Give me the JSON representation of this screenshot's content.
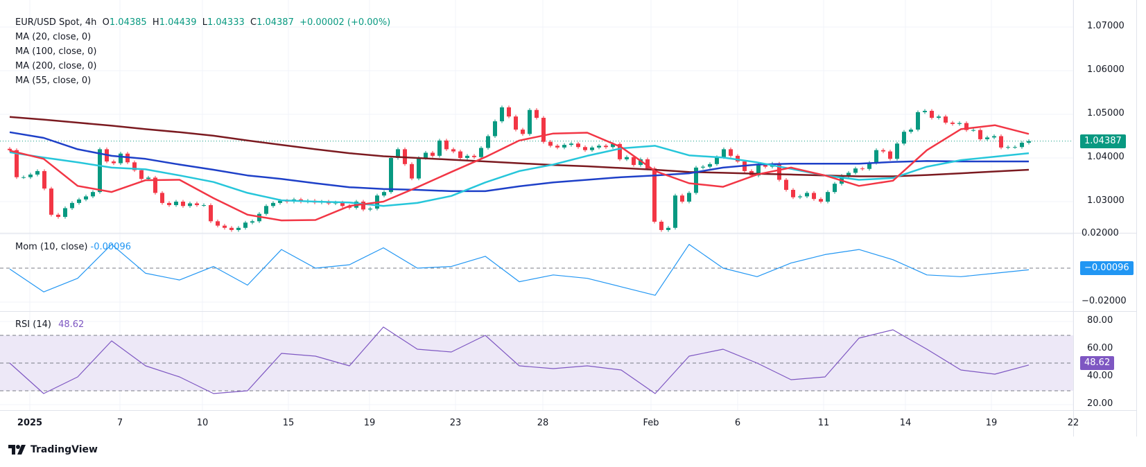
{
  "header": {
    "symbol": "EUR/USD Spot, 4h",
    "open_label": "O",
    "open": "1.04385",
    "high_label": "H",
    "high": "1.04439",
    "low_label": "L",
    "low": "1.04333",
    "close_label": "C",
    "close": "1.04387",
    "change": "+0.00002 (+0.00%)",
    "indicators": [
      "MA (20, close, 0)",
      "MA (100, close, 0)",
      "MA (200, close, 0)",
      "MA (55, close, 0)"
    ]
  },
  "momentum_legend": {
    "label": "Mom (10, close)",
    "value": "-0.00096"
  },
  "rsi_legend": {
    "label": "RSI (14)",
    "value": "48.62"
  },
  "badges": {
    "price": "1.04387",
    "momentum": "−0.00096",
    "rsi": "48.62"
  },
  "colors": {
    "up": "#089981",
    "down": "#f23645",
    "ma20": "#f23645",
    "ma55": "#26c6da",
    "ma100": "#1e40c8",
    "ma200": "#7b1a20",
    "momentum": "#2196f3",
    "rsi": "#7e57c2",
    "rsi_band": "#ede8f7"
  },
  "branding": "TradingView",
  "chart_data": [
    {
      "type": "candlestick",
      "title": "EUR/USD Spot, 4h",
      "y_ticks": [
        "1.07000",
        "1.06000",
        "1.05000",
        "1.04000",
        "1.03000"
      ],
      "y_tick_values": [
        1.07,
        1.06,
        1.05,
        1.04,
        1.03
      ],
      "x_ticks": [
        "2025",
        "7",
        "10",
        "15",
        "19",
        "23",
        "28",
        "Feb",
        "6",
        "11",
        "14",
        "19",
        "22"
      ],
      "last_price": 1.04387,
      "grid": true,
      "closes": [
        1.0418,
        1.0356,
        1.0356,
        1.0362,
        1.037,
        1.033,
        1.027,
        1.0265,
        1.0285,
        1.0297,
        1.0305,
        1.0312,
        1.0322,
        1.042,
        1.0392,
        1.0388,
        1.041,
        1.039,
        1.0372,
        1.0352,
        1.0355,
        1.032,
        1.0297,
        1.0292,
        1.03,
        1.029,
        1.0296,
        1.0292,
        1.0292,
        1.0255,
        1.0245,
        1.024,
        1.0235,
        1.024,
        1.0252,
        1.0255,
        1.0272,
        1.029,
        1.0297,
        1.0302,
        1.03,
        1.0305,
        1.03,
        1.0302,
        1.0298,
        1.03,
        1.0296,
        1.0298,
        1.029,
        1.0286,
        1.03,
        1.0282,
        1.0284,
        1.0314,
        1.0322,
        1.04,
        1.042,
        1.0386,
        1.0353,
        1.04,
        1.0412,
        1.0405,
        1.044,
        1.042,
        1.0415,
        1.04,
        1.0405,
        1.0402,
        1.0423,
        1.045,
        1.0484,
        1.0516,
        1.0495,
        1.0465,
        1.0455,
        1.051,
        1.0492,
        1.0437,
        1.0428,
        1.0424,
        1.043,
        1.0433,
        1.0425,
        1.0418,
        1.0424,
        1.0428,
        1.0425,
        1.0432,
        1.0397,
        1.0402,
        1.0384,
        1.0397,
        1.0376,
        1.0254,
        1.0235,
        1.024,
        1.0314,
        1.03,
        1.032,
        1.0378,
        1.038,
        1.0386,
        1.0402,
        1.042,
        1.0405,
        1.0392,
        1.037,
        1.036,
        1.0384,
        1.038,
        1.0387,
        1.035,
        1.0327,
        1.031,
        1.0312,
        1.032,
        1.0306,
        1.03,
        1.0322,
        1.0341,
        1.0359,
        1.0366,
        1.0376,
        1.0375,
        1.0389,
        1.0418,
        1.0415,
        1.0398,
        1.0433,
        1.046,
        1.0465,
        1.0505,
        1.0508,
        1.0492,
        1.0495,
        1.0481,
        1.0478,
        1.048,
        1.0464,
        1.0464,
        1.0443,
        1.0447,
        1.045,
        1.0424,
        1.0425,
        1.0425,
        1.0435,
        1.04387
      ],
      "series": [
        {
          "name": "MA (20, close, 0)",
          "key": "ma20",
          "values": [
            1.0417,
            1.0398,
            1.0336,
            1.0322,
            1.0349,
            1.035,
            1.0308,
            1.027,
            1.0257,
            1.0258,
            1.029,
            1.03,
            1.0333,
            1.0368,
            1.0402,
            1.044,
            1.0456,
            1.0458,
            1.0425,
            1.037,
            1.0342,
            1.0334,
            1.0362,
            1.0378,
            1.036,
            1.0336,
            1.0348,
            1.0418,
            1.0466,
            1.0475,
            1.0455
          ]
        },
        {
          "name": "MA (100, close, 0)",
          "key": "ma100",
          "values": [
            1.0459,
            1.0446,
            1.042,
            1.0405,
            1.0398,
            1.0385,
            1.0373,
            1.036,
            1.0352,
            1.0342,
            1.0333,
            1.0329,
            1.0327,
            1.0324,
            1.0324,
            1.0335,
            1.0344,
            1.035,
            1.0356,
            1.036,
            1.0365,
            1.0378,
            1.0385,
            1.0387,
            1.0387,
            1.0387,
            1.0391,
            1.0393,
            1.0392,
            1.0392,
            1.0392
          ]
        },
        {
          "name": "MA (200, close, 0)",
          "key": "ma200",
          "values": [
            1.0494,
            1.0488,
            1.0481,
            1.0474,
            1.0466,
            1.0459,
            1.0451,
            1.044,
            1.043,
            1.042,
            1.0411,
            1.0404,
            1.04,
            1.0396,
            1.0392,
            1.0388,
            1.0384,
            1.0381,
            1.0377,
            1.0373,
            1.0368,
            1.0366,
            1.0364,
            1.0362,
            1.036,
            1.0358,
            1.0358,
            1.0361,
            1.0365,
            1.0369,
            1.0373
          ]
        },
        {
          "name": "MA (55, close, 0)",
          "key": "ma55",
          "values": [
            1.0413,
            1.0401,
            1.039,
            1.0378,
            1.0374,
            1.036,
            1.0345,
            1.032,
            1.0303,
            1.03,
            1.0298,
            1.029,
            1.0297,
            1.0313,
            1.0344,
            1.037,
            1.0385,
            1.0405,
            1.0422,
            1.0428,
            1.0406,
            1.0401,
            1.039,
            1.0375,
            1.036,
            1.035,
            1.0354,
            1.038,
            1.0395,
            1.0403,
            1.0411
          ]
        }
      ]
    },
    {
      "type": "line",
      "title": "Mom (10, close)",
      "y_ticks": [
        "0.02000",
        "−0.02000"
      ],
      "y_tick_values": [
        0.02,
        -0.02
      ],
      "reference_line": 0,
      "values": [
        -0.0005,
        -0.014,
        -0.006,
        0.014,
        -0.003,
        -0.007,
        0.001,
        -0.01,
        0.011,
        0.0,
        0.002,
        0.012,
        0.0,
        0.001,
        0.007,
        -0.008,
        -0.004,
        -0.006,
        -0.011,
        -0.016,
        0.014,
        0.0,
        -0.005,
        0.003,
        0.008,
        0.011,
        0.005,
        -0.004,
        -0.005,
        -0.003,
        -0.00096
      ]
    },
    {
      "type": "line",
      "title": "RSI (14)",
      "y_ticks": [
        "80.00",
        "60.00",
        "40.00",
        "20.00"
      ],
      "y_tick_values": [
        80,
        60,
        40,
        20
      ],
      "band": [
        30,
        70
      ],
      "reference_line": 50,
      "values": [
        50,
        28,
        40,
        66,
        48,
        40,
        28,
        30,
        57,
        55,
        48,
        76,
        60,
        58,
        70,
        48,
        46,
        48,
        45,
        28,
        55,
        60,
        50,
        38,
        40,
        68,
        74,
        60,
        45,
        42,
        48.62
      ]
    }
  ]
}
